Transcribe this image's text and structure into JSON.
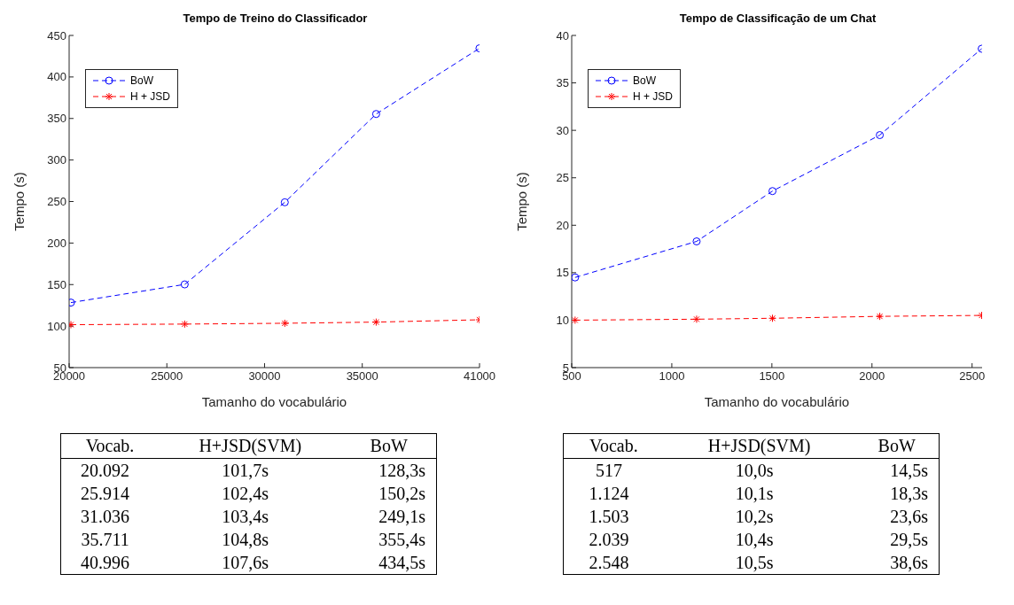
{
  "chart_data": [
    {
      "type": "line",
      "title": "Tempo de Treino do Classificador",
      "xlabel": "Tamanho do vocabulário",
      "ylabel": "Tempo (s)",
      "x": [
        20092,
        25914,
        31036,
        35711,
        40996
      ],
      "xlim": [
        20000,
        41000
      ],
      "xticks": [
        20000,
        25000,
        30000,
        35000,
        41000
      ],
      "ylim": [
        50,
        450
      ],
      "yticks": [
        50,
        100,
        150,
        200,
        250,
        300,
        350,
        400,
        450
      ],
      "legend": "top left",
      "line_style": "dashed",
      "series": [
        {
          "name": "BoW",
          "color": "#0000ff",
          "marker": "circle",
          "values": [
            128.3,
            150.2,
            249.1,
            355.4,
            434.5
          ]
        },
        {
          "name": "H + JSD",
          "color": "#ff0000",
          "marker": "cross",
          "values": [
            101.7,
            102.4,
            103.4,
            104.8,
            107.6
          ]
        }
      ]
    },
    {
      "type": "line",
      "title": "Tempo de Classificação de um Chat",
      "xlabel": "Tamanho do vocabulário",
      "ylabel": "Tempo (s)",
      "x": [
        517,
        1124,
        1503,
        2039,
        2548
      ],
      "xlim": [
        500,
        2550
      ],
      "xticks": [
        500,
        1000,
        1500,
        2000,
        2500
      ],
      "ylim": [
        5,
        40
      ],
      "yticks": [
        5,
        10,
        15,
        20,
        25,
        30,
        35,
        40
      ],
      "legend": "top left",
      "line_style": "dashed",
      "series": [
        {
          "name": "BoW",
          "color": "#0000ff",
          "marker": "circle",
          "values": [
            14.5,
            18.3,
            23.6,
            29.5,
            38.6
          ]
        },
        {
          "name": "H + JSD",
          "color": "#ff0000",
          "marker": "cross",
          "values": [
            10.0,
            10.1,
            10.2,
            10.4,
            10.5
          ]
        }
      ]
    },
    {
      "type": "other",
      "categories": [
        "Vocab.",
        "H+JSD(SVM)",
        "BoW"
      ],
      "annotations": [
        "20.092",
        "101,7s",
        "128,3s",
        "25.914",
        "102,4s",
        "150,2s",
        "31.036",
        "103,4s",
        "249,1s",
        "35.711",
        "104,8s",
        "355,4s",
        "40.996",
        "107,6s",
        "434,5s"
      ]
    },
    {
      "type": "other",
      "categories": [
        "Vocab.",
        "H+JSD(SVM)",
        "BoW"
      ],
      "annotations": [
        "517",
        "10,0s",
        "14,5s",
        "1.124",
        "10,1s",
        "18,3s",
        "1.503",
        "10,2s",
        "23,6s",
        "2.039",
        "10,4s",
        "29,5s",
        "2.548",
        "10,5s",
        "38,6s"
      ]
    }
  ]
}
